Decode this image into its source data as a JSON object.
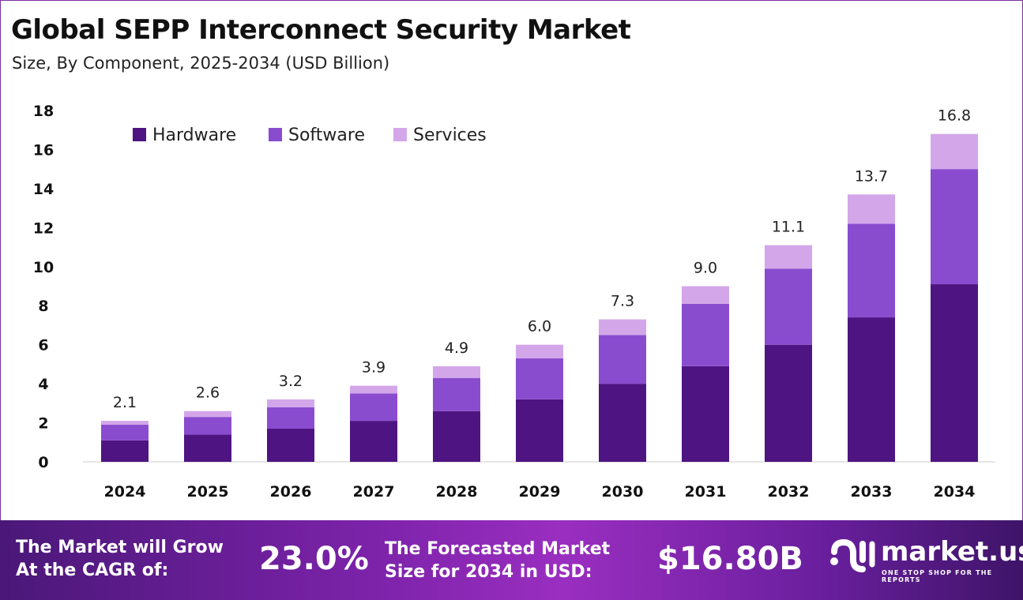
{
  "chart_data": {
    "type": "bar",
    "stacked": true,
    "title": "Global SEPP Interconnect Security Market",
    "subtitle": "Size, By Component, 2025-2034 (USD Billion)",
    "categories": [
      "2024",
      "2025",
      "2026",
      "2027",
      "2028",
      "2029",
      "2030",
      "2031",
      "2032",
      "2033",
      "2034"
    ],
    "series": [
      {
        "name": "Hardware",
        "color": "#4e1582",
        "values": [
          1.1,
          1.4,
          1.7,
          2.1,
          2.6,
          3.2,
          4.0,
          4.9,
          6.0,
          7.4,
          9.1
        ]
      },
      {
        "name": "Software",
        "color": "#8a4ccf",
        "values": [
          0.8,
          0.9,
          1.1,
          1.4,
          1.7,
          2.1,
          2.5,
          3.2,
          3.9,
          4.8,
          5.9
        ]
      },
      {
        "name": "Services",
        "color": "#d3a6ea",
        "values": [
          0.2,
          0.3,
          0.4,
          0.4,
          0.6,
          0.7,
          0.8,
          0.9,
          1.2,
          1.5,
          1.8
        ]
      }
    ],
    "totals": [
      "2.1",
      "2.6",
      "3.2",
      "3.9",
      "4.9",
      "6.0",
      "7.3",
      "9.0",
      "11.1",
      "13.7",
      "16.8"
    ],
    "ylim": [
      0,
      18
    ],
    "yticks": [
      "0",
      "2",
      "4",
      "6",
      "8",
      "10",
      "12",
      "14",
      "16",
      "18"
    ],
    "grid": false,
    "legend": "top-left"
  },
  "banner": {
    "cagr_label_1": "The Market will Grow",
    "cagr_label_2": "At the CAGR of:",
    "cagr_value": "23.0%",
    "forecast_label_1": "The Forecasted Market",
    "forecast_label_2": "Size for 2034 in USD:",
    "forecast_value": "$16.80B",
    "logo_name": "market.us",
    "logo_tagline": "ONE STOP SHOP FOR THE REPORTS"
  }
}
